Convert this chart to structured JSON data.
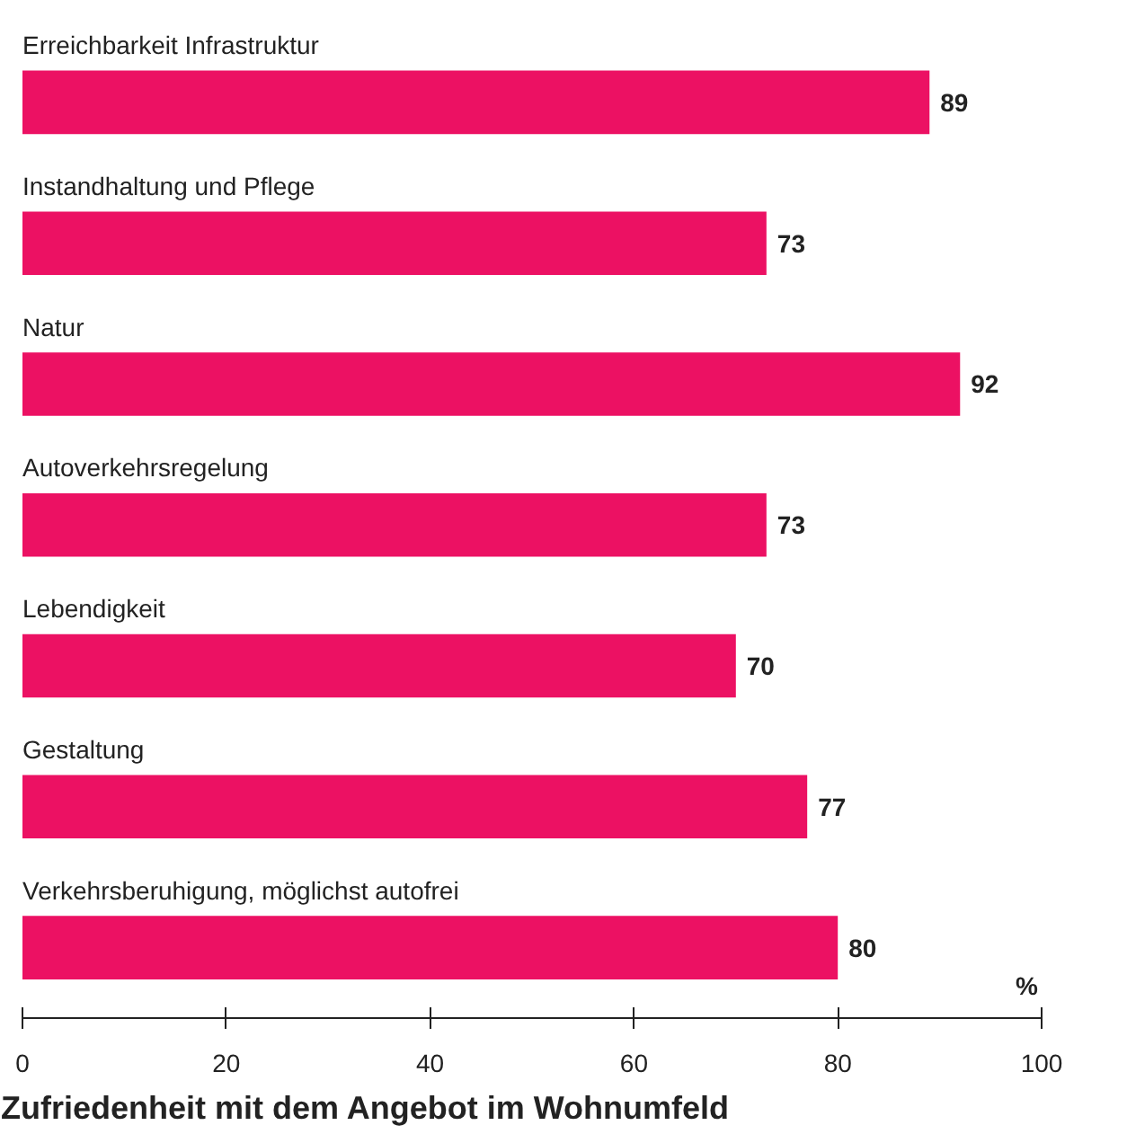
{
  "chart_data": {
    "type": "bar",
    "orientation": "horizontal",
    "title": "Zufriedenheit mit dem Angebot im Wohnumfeld",
    "xlabel": "%",
    "categories": [
      "Erreichbarkeit Infrastruktur",
      "Instandhaltung und Pflege",
      "Natur",
      "Autoverkehrsregelung",
      "Lebendigkeit",
      "Gestaltung",
      "Verkehrsberuhigung, möglichst autofrei"
    ],
    "values": [
      89,
      73,
      92,
      73,
      70,
      77,
      80
    ],
    "color": "#ec1163",
    "xlim": [
      0,
      100
    ],
    "xticks": [
      0,
      20,
      40,
      60,
      80,
      100
    ],
    "grid": false,
    "data_labels": true
  }
}
